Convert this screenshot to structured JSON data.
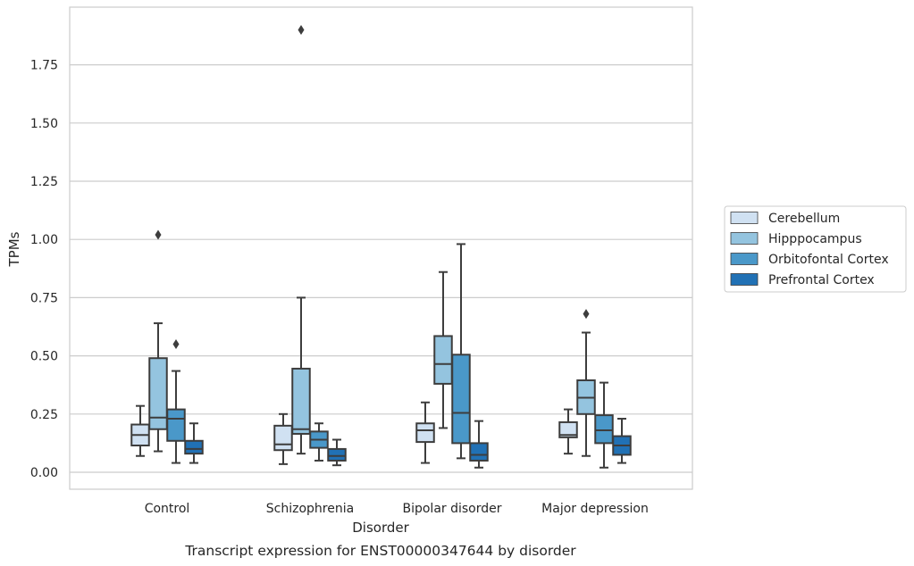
{
  "chart_data": {
    "type": "box",
    "caption": "Transcript expression for ENST00000347644 by disorder",
    "xlabel": "Disorder",
    "ylabel": "TPMs",
    "ylim": [
      -0.07,
      1.99
    ],
    "yticks": [
      0.0,
      0.25,
      0.5,
      0.75,
      1.0,
      1.25,
      1.5,
      1.75
    ],
    "ytick_labels": [
      "0.00",
      "0.25",
      "0.50",
      "0.75",
      "1.00",
      "1.25",
      "1.50",
      "1.75"
    ],
    "grid": true,
    "legend_position": "right",
    "categories": [
      "Control",
      "Schizophrenia",
      "Bipolar disorder",
      "Major depression"
    ],
    "series": [
      {
        "name": "Cerebellum",
        "color": "#d0e1f2",
        "boxes": [
          {
            "whisker_low": 0.07,
            "q1": 0.115,
            "median": 0.16,
            "q3": 0.205,
            "whisker_high": 0.285,
            "outliers": []
          },
          {
            "whisker_low": 0.035,
            "q1": 0.095,
            "median": 0.12,
            "q3": 0.2,
            "whisker_high": 0.25,
            "outliers": []
          },
          {
            "whisker_low": 0.04,
            "q1": 0.13,
            "median": 0.18,
            "q3": 0.21,
            "whisker_high": 0.3,
            "outliers": []
          },
          {
            "whisker_low": 0.08,
            "q1": 0.15,
            "median": 0.16,
            "q3": 0.215,
            "whisker_high": 0.27,
            "outliers": []
          }
        ]
      },
      {
        "name": "Hipppocampus",
        "color": "#94c4df",
        "boxes": [
          {
            "whisker_low": 0.09,
            "q1": 0.185,
            "median": 0.235,
            "q3": 0.49,
            "whisker_high": 0.64,
            "outliers": [
              1.02
            ]
          },
          {
            "whisker_low": 0.08,
            "q1": 0.165,
            "median": 0.185,
            "q3": 0.445,
            "whisker_high": 0.75,
            "outliers": [
              1.9
            ]
          },
          {
            "whisker_low": 0.19,
            "q1": 0.38,
            "median": 0.465,
            "q3": 0.585,
            "whisker_high": 0.86,
            "outliers": []
          },
          {
            "whisker_low": 0.07,
            "q1": 0.25,
            "median": 0.32,
            "q3": 0.395,
            "whisker_high": 0.6,
            "outliers": [
              0.68
            ]
          }
        ]
      },
      {
        "name": "Orbitofontal Cortex",
        "color": "#4a98c9",
        "boxes": [
          {
            "whisker_low": 0.04,
            "q1": 0.135,
            "median": 0.23,
            "q3": 0.27,
            "whisker_high": 0.435,
            "outliers": [
              0.55
            ]
          },
          {
            "whisker_low": 0.05,
            "q1": 0.105,
            "median": 0.14,
            "q3": 0.175,
            "whisker_high": 0.21,
            "outliers": []
          },
          {
            "whisker_low": 0.06,
            "q1": 0.125,
            "median": 0.255,
            "q3": 0.505,
            "whisker_high": 0.98,
            "outliers": []
          },
          {
            "whisker_low": 0.02,
            "q1": 0.125,
            "median": 0.18,
            "q3": 0.245,
            "whisker_high": 0.385,
            "outliers": []
          }
        ]
      },
      {
        "name": "Prefrontal Cortex",
        "color": "#2171b5",
        "boxes": [
          {
            "whisker_low": 0.04,
            "q1": 0.08,
            "median": 0.1,
            "q3": 0.135,
            "whisker_high": 0.21,
            "outliers": []
          },
          {
            "whisker_low": 0.03,
            "q1": 0.05,
            "median": 0.07,
            "q3": 0.1,
            "whisker_high": 0.14,
            "outliers": []
          },
          {
            "whisker_low": 0.02,
            "q1": 0.05,
            "median": 0.075,
            "q3": 0.125,
            "whisker_high": 0.22,
            "outliers": []
          },
          {
            "whisker_low": 0.04,
            "q1": 0.075,
            "median": 0.115,
            "q3": 0.155,
            "whisker_high": 0.23,
            "outliers": []
          }
        ]
      }
    ]
  }
}
